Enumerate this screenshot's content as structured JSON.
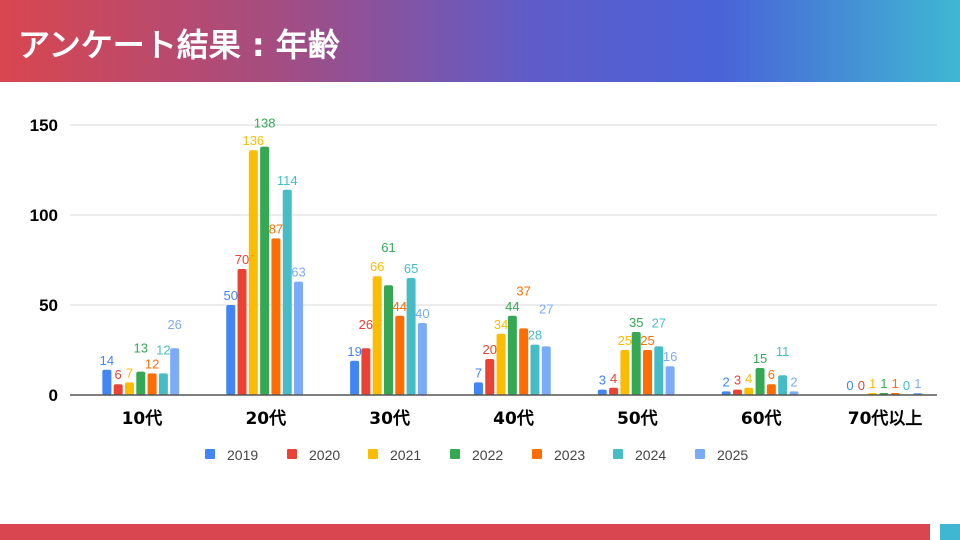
{
  "header": {
    "title": "アンケート結果 : 年齢"
  },
  "chart_data": {
    "type": "bar",
    "title": "",
    "categories": [
      "10代",
      "20代",
      "30代",
      "40代",
      "50代",
      "60代",
      "70代以上"
    ],
    "series": [
      {
        "name": "2019",
        "color": "#4285f4",
        "values": [
          14,
          50,
          19,
          7,
          3,
          2,
          0
        ]
      },
      {
        "name": "2020",
        "color": "#ea4335",
        "values": [
          6,
          70,
          26,
          20,
          4,
          3,
          0
        ]
      },
      {
        "name": "2021",
        "color": "#fbbc04",
        "values": [
          7,
          136,
          66,
          34,
          25,
          4,
          1
        ]
      },
      {
        "name": "2022",
        "color": "#34a853",
        "values": [
          13,
          138,
          61,
          44,
          35,
          15,
          1
        ]
      },
      {
        "name": "2023",
        "color": "#ff6d01",
        "values": [
          12,
          87,
          44,
          37,
          25,
          6,
          1
        ]
      },
      {
        "name": "2024",
        "color": "#46bdc6",
        "values": [
          12,
          114,
          65,
          28,
          27,
          11,
          0
        ]
      },
      {
        "name": "2025",
        "color": "#7baaf7",
        "values": [
          26,
          63,
          40,
          27,
          16,
          2,
          1
        ]
      }
    ],
    "yticks": [
      0,
      50,
      100,
      150
    ],
    "ylim": [
      0,
      150
    ],
    "grid": true,
    "legend": "bottom"
  }
}
